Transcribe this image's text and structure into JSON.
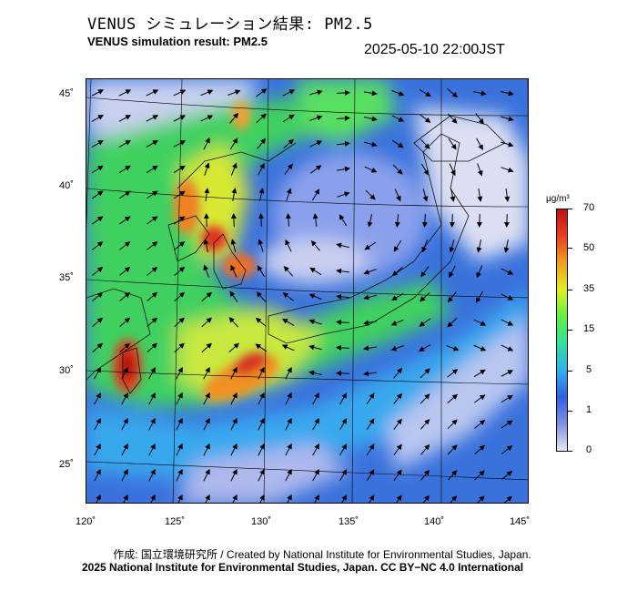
{
  "header": {
    "title_jp": "VENUS シミュレーション結果: PM2.5",
    "title_en": "VENUS simulation result: PM2.5",
    "datetime": "2025-05-10 22:00JST"
  },
  "map": {
    "lon_labels": [
      "120˚",
      "125˚",
      "130˚",
      "135˚",
      "140˚",
      "145˚"
    ],
    "lat_labels": [
      "45˚",
      "40˚",
      "35˚",
      "30˚",
      "25˚"
    ],
    "lon_range": [
      120,
      145
    ],
    "lat_range": [
      23,
      46
    ]
  },
  "colorbar": {
    "unit": "μg/m³",
    "labels": [
      "70",
      "50",
      "35",
      "15",
      "5",
      "1",
      "0"
    ],
    "colors": [
      "#e8e8f4",
      "#8090e0",
      "#3060e0",
      "#30b0f0",
      "#30e0a0",
      "#60f040",
      "#e0f020",
      "#f0a020",
      "#e84020",
      "#c01010"
    ]
  },
  "footer": {
    "credit_line1": "作成: 国立環境研究所 / Created by National Institute for Environmental Studies, Japan.",
    "credit_line2": "2025 National Institute for Environmental Studies, Japan. CC BY−NC 4.0 International"
  }
}
